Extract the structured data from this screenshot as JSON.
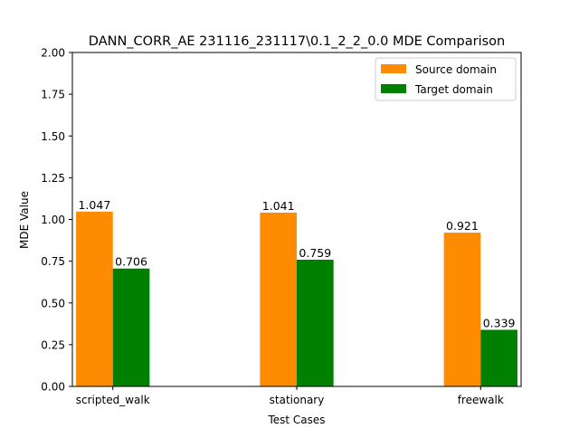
{
  "chart_data": {
    "type": "bar",
    "title": "DANN_CORR_AE 231116_231117\\0.1_2_2_0.0 MDE Comparison",
    "xlabel": "Test Cases",
    "ylabel": "MDE Value",
    "categories": [
      "scripted_walk",
      "stationary",
      "freewalk"
    ],
    "series": [
      {
        "name": "Source domain",
        "color": "#ff8c00",
        "values": [
          1.047,
          1.041,
          0.921
        ]
      },
      {
        "name": "Target domain",
        "color": "#008000",
        "values": [
          0.706,
          0.759,
          0.339
        ]
      }
    ],
    "data_labels": [
      [
        "1.047",
        "1.041",
        "0.921"
      ],
      [
        "0.706",
        "0.759",
        "0.339"
      ]
    ],
    "ylim": [
      0,
      2.0
    ],
    "yticks": [
      "0.00",
      "0.25",
      "0.50",
      "0.75",
      "1.00",
      "1.25",
      "1.50",
      "1.75",
      "2.00"
    ],
    "legend_position": "top-right",
    "grid": false
  }
}
